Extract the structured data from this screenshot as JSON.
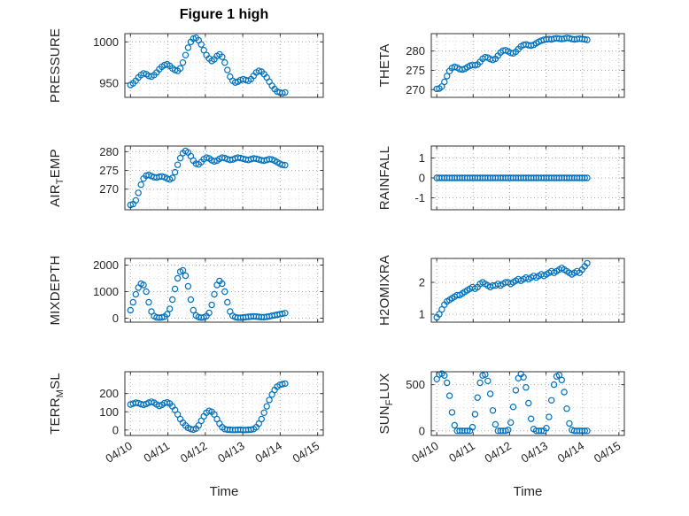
{
  "title": "Figure 1 high",
  "xlabel": "Time",
  "colors": {
    "marker": "#0072BD",
    "axis": "#333333",
    "grid_major": "#ababab",
    "grid_minor": "#dcdcdc",
    "text": "#262626"
  },
  "chart_data": {
    "type": "scatter",
    "marker": "open-circle",
    "x": [
      0,
      0.07,
      0.14,
      0.21,
      0.28,
      0.35,
      0.42,
      0.49,
      0.56,
      0.63,
      0.7,
      0.77,
      0.84,
      0.91,
      0.98,
      1.05,
      1.12,
      1.19,
      1.26,
      1.33,
      1.4,
      1.47,
      1.54,
      1.61,
      1.68,
      1.75,
      1.82,
      1.89,
      1.96,
      2.03,
      2.1,
      2.17,
      2.24,
      2.31,
      2.38,
      2.45,
      2.52,
      2.59,
      2.66,
      2.73,
      2.8,
      2.87,
      2.94,
      3.01,
      3.08,
      3.15,
      3.22,
      3.29,
      3.36,
      3.43,
      3.5,
      3.57,
      3.64,
      3.71,
      3.78,
      3.85,
      3.92,
      3.99,
      4.06,
      4.13
    ],
    "xaxis": {
      "lim": [
        -0.15,
        5.15
      ],
      "ticks": [
        0,
        1,
        2,
        3,
        4,
        5
      ],
      "labels": [
        "04/10",
        "04/11",
        "04/12",
        "04/13",
        "04/14",
        "04/15"
      ],
      "label": "Time"
    },
    "panels": [
      {
        "name": "pressure",
        "ylabel": {
          "pre": "PRESSURE",
          "sub": "",
          "post": ""
        },
        "ylim": [
          933,
          1010
        ],
        "yticks": [
          950,
          1000
        ],
        "values": [
          948,
          950,
          953,
          957,
          960,
          962,
          961,
          959,
          958,
          960,
          963,
          967,
          970,
          972,
          973,
          971,
          968,
          966,
          965,
          968,
          975,
          984,
          993,
          1000,
          1004,
          1005,
          1002,
          997,
          990,
          984,
          980,
          977,
          979,
          983,
          985,
          982,
          975,
          966,
          958,
          953,
          951,
          952,
          954,
          955,
          954,
          953,
          955,
          959,
          963,
          965,
          964,
          961,
          957,
          952,
          947,
          943,
          940,
          939,
          938,
          939
        ]
      },
      {
        "name": "theta",
        "ylabel": {
          "pre": "THETA",
          "sub": "",
          "post": ""
        },
        "ylim": [
          268,
          284.5
        ],
        "yticks": [
          270,
          275,
          280
        ],
        "values": [
          270.2,
          270.3,
          270.8,
          272,
          273.5,
          274.8,
          275.6,
          275.9,
          275.7,
          275.3,
          275.2,
          275.4,
          275.8,
          276.2,
          276.4,
          276.3,
          276.5,
          277.2,
          278,
          278.4,
          278.3,
          277.9,
          277.7,
          278,
          278.8,
          279.6,
          280.1,
          280.2,
          279.9,
          279.5,
          279.4,
          279.8,
          280.5,
          281.2,
          281.6,
          281.7,
          281.5,
          281.4,
          281.6,
          282,
          282.4,
          282.7,
          282.9,
          283,
          283.1,
          283,
          283.2,
          283.3,
          283.2,
          283.1,
          283.2,
          283.4,
          283.3,
          283.1,
          283,
          283.1,
          283.2,
          283.1,
          283,
          282.9
        ]
      },
      {
        "name": "air_temp",
        "ylabel": {
          "pre": "AIR",
          "sub": "T",
          "post": "EMP"
        },
        "ylim": [
          264.5,
          281.5
        ],
        "yticks": [
          270,
          275,
          280
        ],
        "values": [
          265.8,
          266,
          267,
          269,
          271.2,
          272.8,
          273.6,
          273.8,
          273.5,
          273.2,
          273.1,
          273.3,
          273.4,
          273.2,
          272.8,
          272.6,
          273,
          274.5,
          276.5,
          278.3,
          279.6,
          280.2,
          279.8,
          278.8,
          277.6,
          276.8,
          276.6,
          277.2,
          278,
          278.4,
          278.2,
          277.7,
          277.4,
          277.6,
          278.1,
          278.4,
          278.3,
          278,
          277.8,
          277.9,
          278.2,
          278.4,
          278.3,
          278.1,
          277.9,
          277.8,
          278,
          278.2,
          278.1,
          277.9,
          277.7,
          277.6,
          277.8,
          278,
          277.9,
          277.6,
          277.2,
          276.8,
          276.5,
          276.4
        ]
      },
      {
        "name": "rainfall",
        "ylabel": {
          "pre": "RAINFALL",
          "sub": "",
          "post": ""
        },
        "ylim": [
          -1.6,
          1.6
        ],
        "yticks": [
          -1,
          0,
          1
        ],
        "values": [
          0,
          0,
          0,
          0,
          0,
          0,
          0,
          0,
          0,
          0,
          0,
          0,
          0,
          0,
          0,
          0,
          0,
          0,
          0,
          0,
          0,
          0,
          0,
          0,
          0,
          0,
          0,
          0,
          0,
          0,
          0,
          0,
          0,
          0,
          0,
          0,
          0,
          0,
          0,
          0,
          0,
          0,
          0,
          0,
          0,
          0,
          0,
          0,
          0,
          0,
          0,
          0,
          0,
          0,
          0,
          0,
          0,
          0,
          0,
          0
        ]
      },
      {
        "name": "mixdepth",
        "ylabel": {
          "pre": "MIXDEPTH",
          "sub": "",
          "post": ""
        },
        "ylim": [
          -150,
          2250
        ],
        "yticks": [
          0,
          1000,
          2000
        ],
        "values": [
          300,
          600,
          900,
          1150,
          1300,
          1250,
          1000,
          600,
          250,
          80,
          30,
          20,
          30,
          60,
          150,
          350,
          700,
          1100,
          1500,
          1750,
          1800,
          1600,
          1200,
          700,
          300,
          100,
          40,
          20,
          30,
          80,
          200,
          500,
          900,
          1250,
          1400,
          1300,
          1000,
          600,
          250,
          90,
          40,
          20,
          20,
          30,
          40,
          50,
          60,
          70,
          60,
          50,
          40,
          40,
          50,
          70,
          90,
          110,
          130,
          150,
          170,
          190
        ]
      },
      {
        "name": "h2omixra",
        "ylabel": {
          "pre": "H2OMIXRA",
          "sub": "",
          "post": ""
        },
        "ylim": [
          0.75,
          2.75
        ],
        "yticks": [
          1,
          2
        ],
        "values": [
          0.9,
          1,
          1.15,
          1.3,
          1.4,
          1.45,
          1.5,
          1.55,
          1.6,
          1.6,
          1.65,
          1.7,
          1.75,
          1.8,
          1.85,
          1.8,
          1.85,
          1.95,
          2,
          1.95,
          1.9,
          1.85,
          1.9,
          1.9,
          1.95,
          1.9,
          1.95,
          2,
          2,
          1.95,
          2,
          2.05,
          2.1,
          2.05,
          2.1,
          2.15,
          2.1,
          2.15,
          2.2,
          2.15,
          2.2,
          2.25,
          2.2,
          2.25,
          2.3,
          2.35,
          2.3,
          2.35,
          2.4,
          2.45,
          2.4,
          2.35,
          2.3,
          2.25,
          2.3,
          2.35,
          2.3,
          2.4,
          2.5,
          2.6
        ]
      },
      {
        "name": "terr_msl",
        "ylabel": {
          "pre": "TERR",
          "sub": "M",
          "post": "SL"
        },
        "ylim": [
          -30,
          320
        ],
        "yticks": [
          0,
          100,
          200
        ],
        "values": [
          140,
          145,
          150,
          148,
          142,
          138,
          143,
          150,
          155,
          150,
          140,
          132,
          138,
          148,
          152,
          145,
          130,
          110,
          85,
          60,
          40,
          25,
          12,
          5,
          2,
          8,
          25,
          50,
          75,
          95,
          105,
          100,
          85,
          60,
          35,
          15,
          5,
          2,
          1,
          0,
          0,
          1,
          1,
          0,
          0,
          1,
          2,
          5,
          15,
          35,
          60,
          95,
          130,
          165,
          195,
          220,
          238,
          248,
          252,
          255
        ]
      },
      {
        "name": "sun_flux",
        "ylabel": {
          "pre": "SUN",
          "sub": "F",
          "post": "LUX"
        },
        "ylim": [
          -50,
          640
        ],
        "yticks": [
          0,
          500
        ],
        "values": [
          560,
          610,
          620,
          600,
          520,
          380,
          200,
          60,
          0,
          0,
          0,
          0,
          0,
          0,
          40,
          180,
          360,
          520,
          600,
          610,
          540,
          400,
          220,
          70,
          0,
          0,
          0,
          0,
          10,
          90,
          260,
          440,
          570,
          615,
          580,
          470,
          300,
          130,
          20,
          0,
          0,
          0,
          0,
          30,
          150,
          330,
          500,
          590,
          605,
          550,
          420,
          240,
          80,
          10,
          0,
          0,
          0,
          0,
          0,
          0
        ]
      }
    ]
  }
}
